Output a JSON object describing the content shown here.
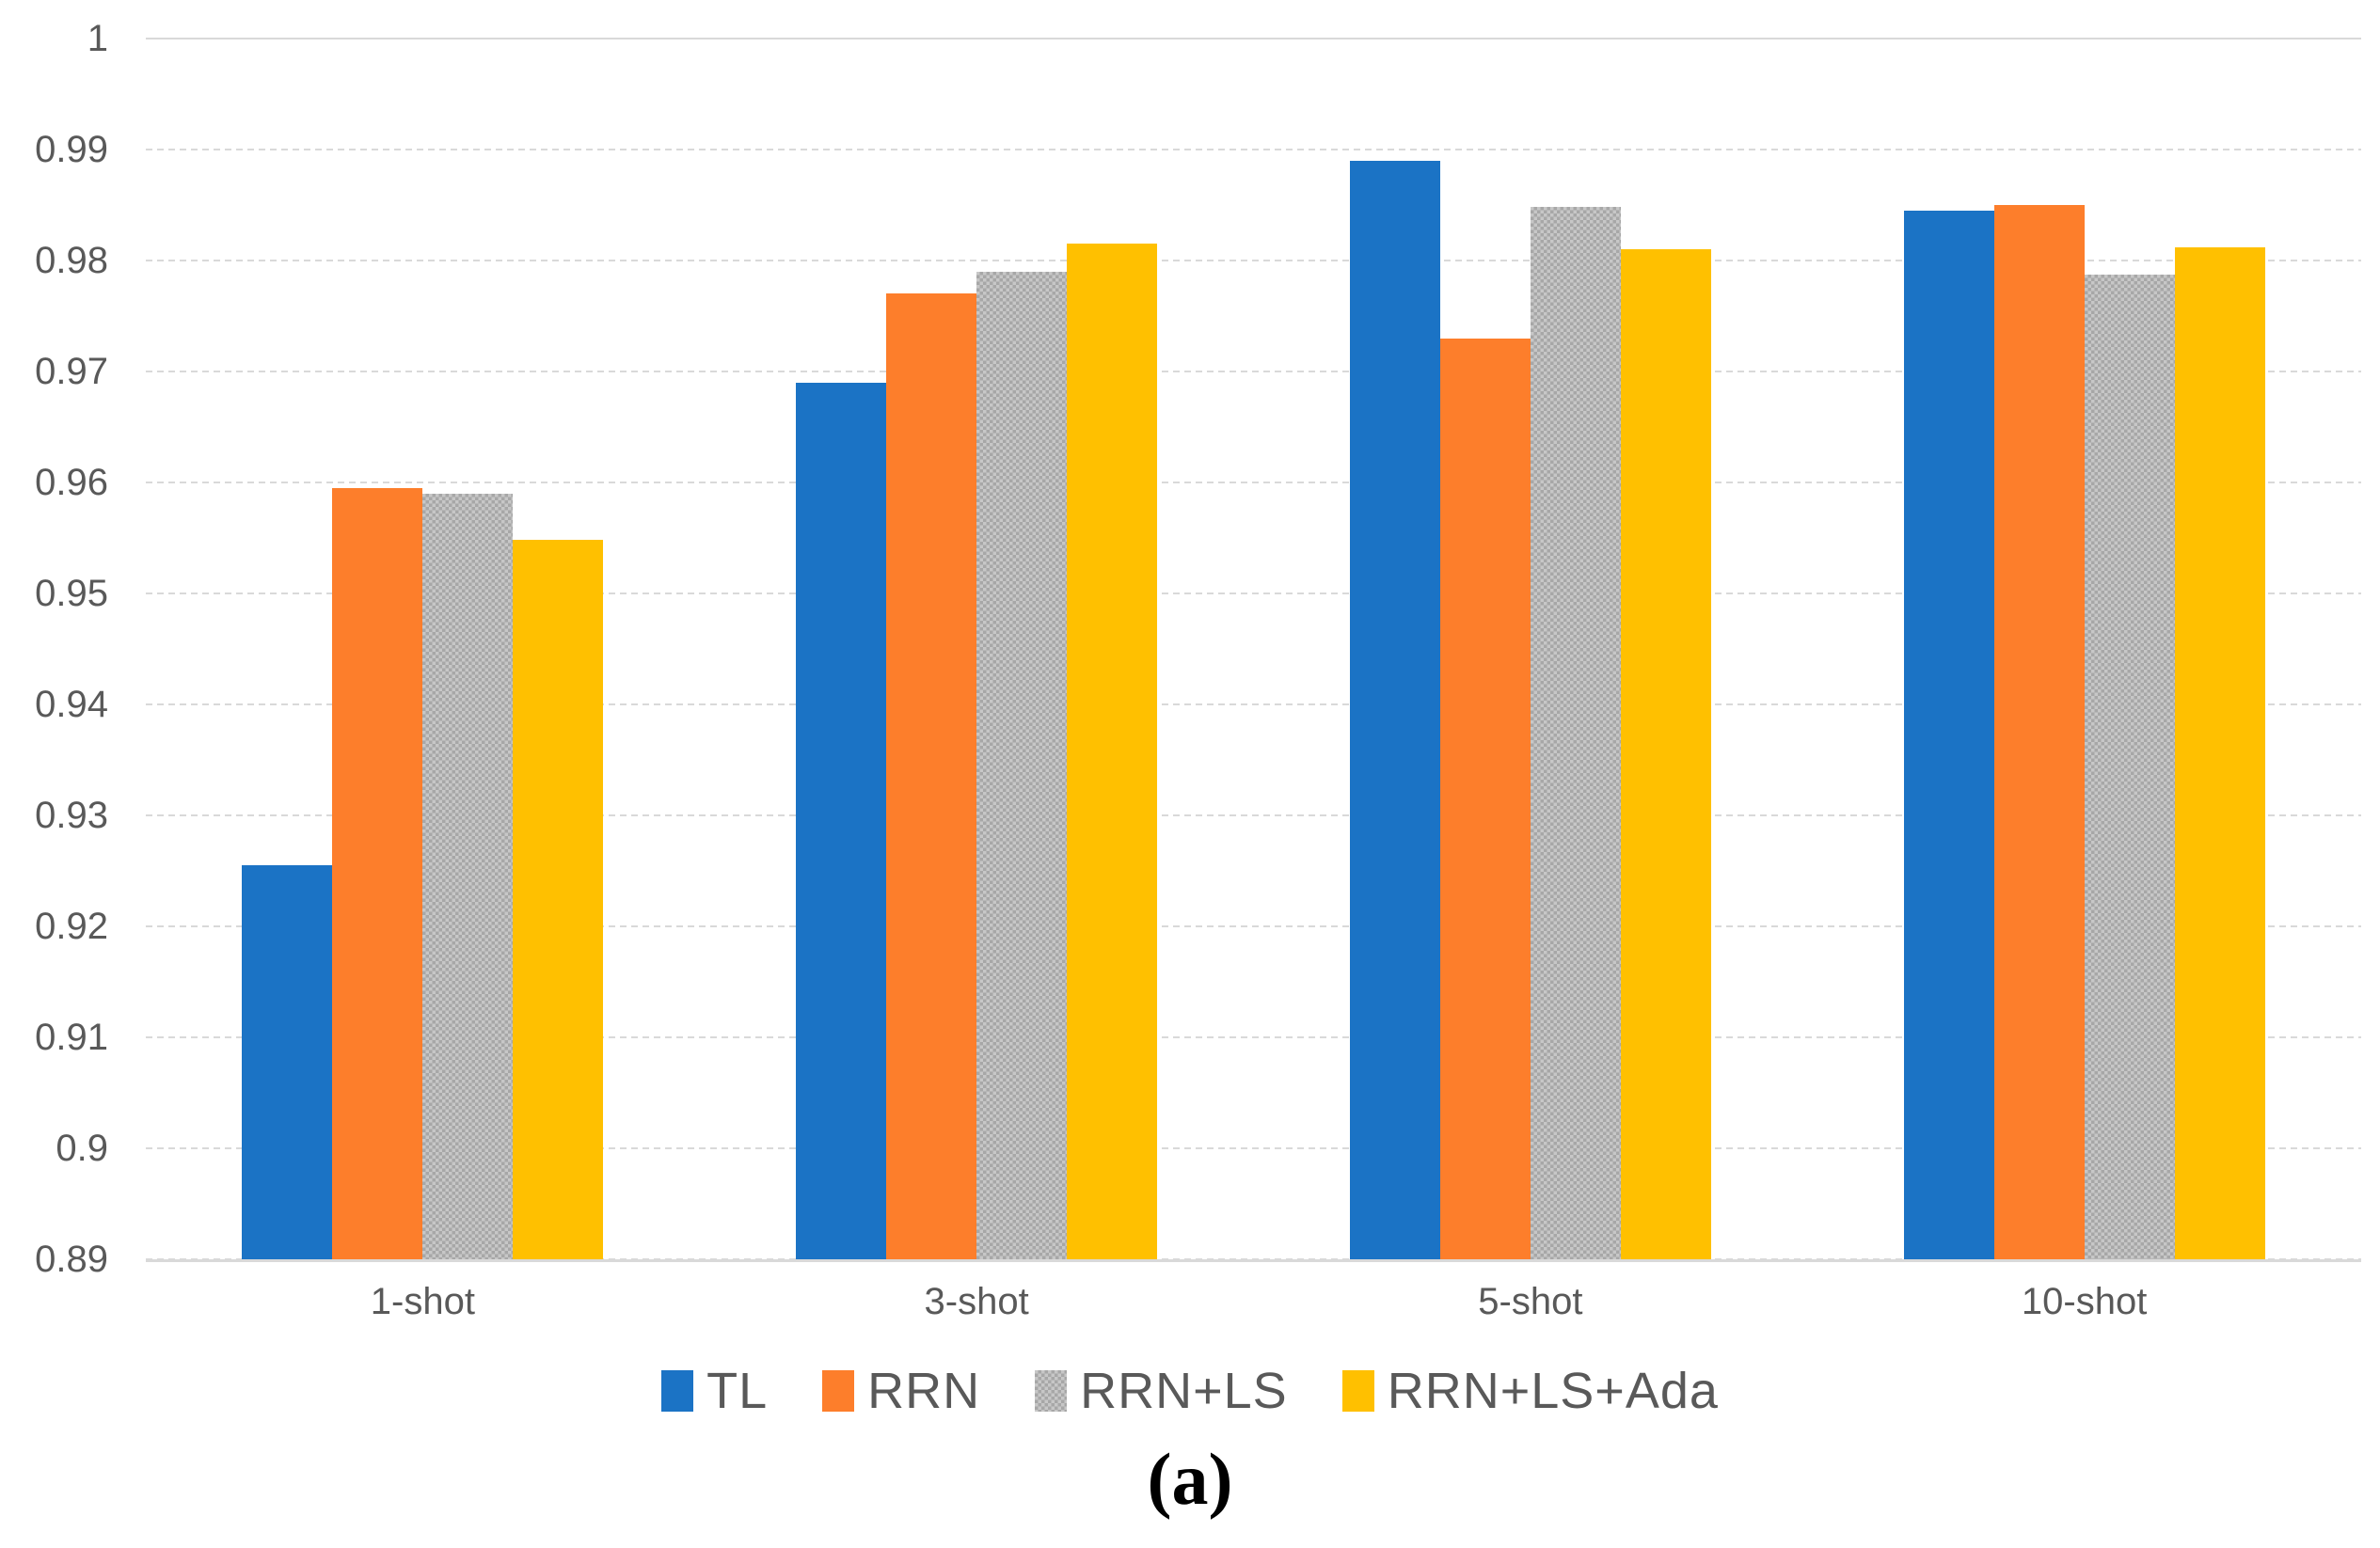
{
  "caption": "(a)",
  "colors": {
    "grid": "#d9d9d9",
    "axis_text": "#595959",
    "background": "#ffffff"
  },
  "chart_data": {
    "type": "bar",
    "title": "",
    "xlabel": "",
    "ylabel": "",
    "categories": [
      "1-shot",
      "3-shot",
      "5-shot",
      "10-shot"
    ],
    "series": [
      {
        "name": "TL",
        "color": "#1b73c5",
        "pattern": false,
        "values": [
          0.9255,
          0.969,
          0.989,
          0.9845
        ]
      },
      {
        "name": "RRN",
        "color": "#fd7e2b",
        "pattern": false,
        "values": [
          0.9595,
          0.977,
          0.973,
          0.985
        ]
      },
      {
        "name": "RRN+LS",
        "color": "#b8b8b8",
        "pattern": true,
        "values": [
          0.959,
          0.979,
          0.9848,
          0.9787
        ]
      },
      {
        "name": "RRN+LS+Ada",
        "color": "#ffc000",
        "pattern": false,
        "values": [
          0.9548,
          0.9815,
          0.981,
          0.9812
        ]
      }
    ],
    "ylim": [
      0.89,
      1.0
    ],
    "yticks": [
      {
        "label": "1",
        "value": 1.0,
        "solid": true
      },
      {
        "label": "0.99",
        "value": 0.99,
        "solid": false
      },
      {
        "label": "0.98",
        "value": 0.98,
        "solid": false
      },
      {
        "label": "0.97",
        "value": 0.97,
        "solid": false
      },
      {
        "label": "0.96",
        "value": 0.96,
        "solid": false
      },
      {
        "label": "0.95",
        "value": 0.95,
        "solid": false
      },
      {
        "label": "0.94",
        "value": 0.94,
        "solid": false
      },
      {
        "label": "0.93",
        "value": 0.93,
        "solid": false
      },
      {
        "label": "0.92",
        "value": 0.92,
        "solid": false
      },
      {
        "label": "0.91",
        "value": 0.91,
        "solid": false
      },
      {
        "label": "0.9",
        "value": 0.9,
        "solid": false
      },
      {
        "label": "0.89",
        "value": 0.89,
        "solid": false
      }
    ],
    "grid": "horizontal-dashed",
    "legend_position": "bottom"
  }
}
